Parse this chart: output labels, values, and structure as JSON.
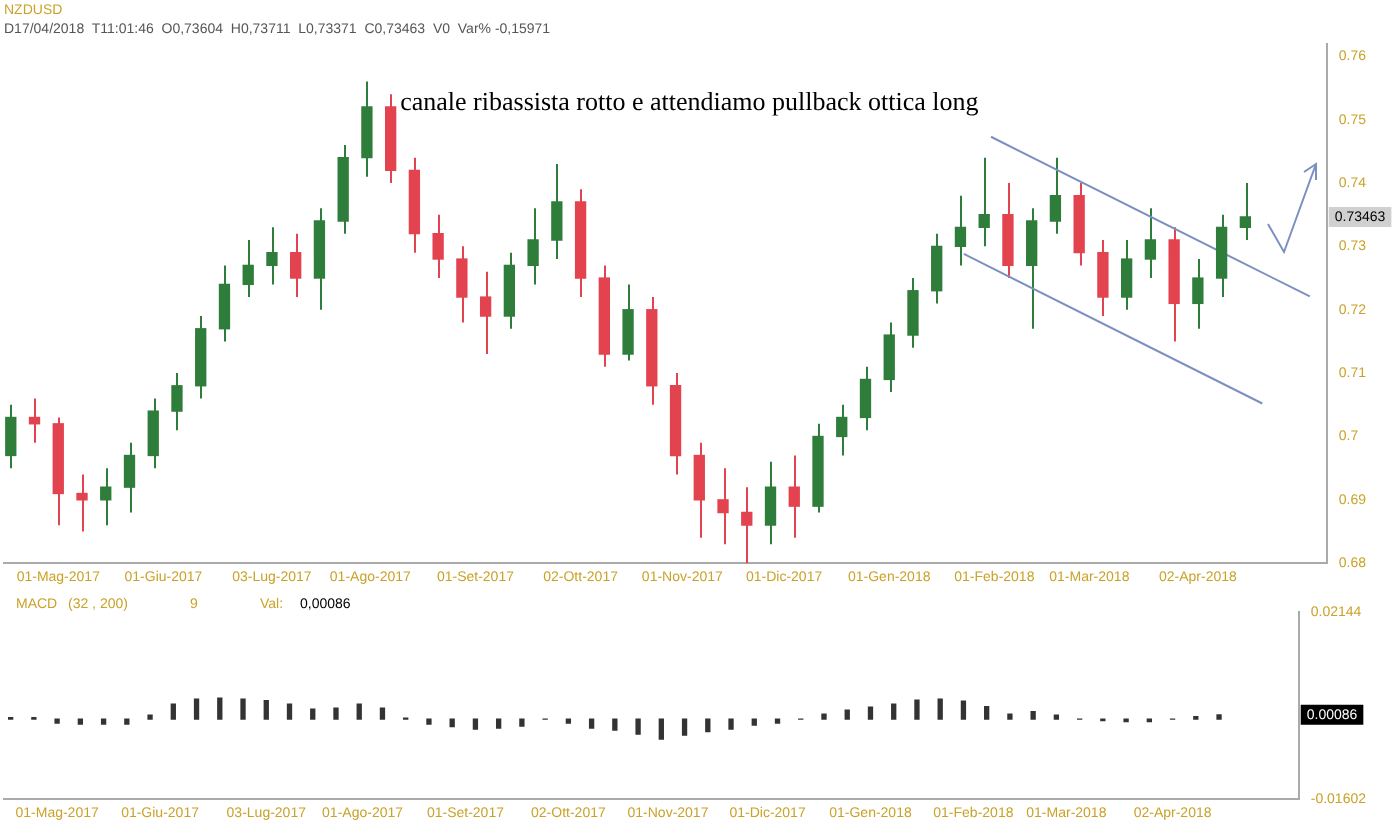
{
  "chart_data": [
    {
      "type": "candlestick",
      "title": "NZDUSD",
      "subtitle": "D17/04/2018  T11:01:46  O0,73604  H0,73711  L0,73371  C0,73463  V0  Var% -0,15971",
      "annotations": [
        "canale ribassista rotto e attendiamo pullback ottica long",
        "0.73463"
      ],
      "x": [
        "2017-04-17",
        "2017-04-24",
        "2017-05-01",
        "2017-05-08",
        "2017-05-15",
        "2017-05-22",
        "2017-05-29",
        "2017-06-05",
        "2017-06-12",
        "2017-06-19",
        "2017-06-26",
        "2017-07-03",
        "2017-07-10",
        "2017-07-17",
        "2017-07-24",
        "2017-07-31",
        "2017-08-07",
        "2017-08-14",
        "2017-08-21",
        "2017-08-28",
        "2017-09-04",
        "2017-09-11",
        "2017-09-18",
        "2017-09-25",
        "2017-10-02",
        "2017-10-09",
        "2017-10-16",
        "2017-10-23",
        "2017-10-30",
        "2017-11-06",
        "2017-11-13",
        "2017-11-20",
        "2017-11-27",
        "2017-12-04",
        "2017-12-11",
        "2017-12-18",
        "2017-12-25",
        "2018-01-01",
        "2018-01-08",
        "2018-01-15",
        "2018-01-22",
        "2018-01-29",
        "2018-02-05",
        "2018-02-12",
        "2018-02-19",
        "2018-02-26",
        "2018-03-05",
        "2018-03-12",
        "2018-03-19",
        "2018-03-26",
        "2018-04-02",
        "2018-04-09",
        "2018-04-16"
      ],
      "ohlc": [
        [
          0.697,
          0.705,
          0.695,
          0.703
        ],
        [
          0.703,
          0.706,
          0.699,
          0.702
        ],
        [
          0.702,
          0.703,
          0.686,
          0.691
        ],
        [
          0.691,
          0.694,
          0.685,
          0.69
        ],
        [
          0.69,
          0.695,
          0.686,
          0.692
        ],
        [
          0.692,
          0.699,
          0.688,
          0.697
        ],
        [
          0.697,
          0.706,
          0.695,
          0.704
        ],
        [
          0.704,
          0.71,
          0.701,
          0.708
        ],
        [
          0.708,
          0.719,
          0.706,
          0.717
        ],
        [
          0.717,
          0.727,
          0.715,
          0.724
        ],
        [
          0.724,
          0.731,
          0.722,
          0.727
        ],
        [
          0.727,
          0.733,
          0.724,
          0.729
        ],
        [
          0.729,
          0.732,
          0.722,
          0.725
        ],
        [
          0.725,
          0.736,
          0.72,
          0.734
        ],
        [
          0.734,
          0.746,
          0.732,
          0.744
        ],
        [
          0.744,
          0.756,
          0.741,
          0.752
        ],
        [
          0.752,
          0.754,
          0.74,
          0.742
        ],
        [
          0.742,
          0.744,
          0.729,
          0.732
        ],
        [
          0.732,
          0.735,
          0.725,
          0.728
        ],
        [
          0.728,
          0.73,
          0.718,
          0.722
        ],
        [
          0.722,
          0.726,
          0.713,
          0.719
        ],
        [
          0.719,
          0.729,
          0.717,
          0.727
        ],
        [
          0.727,
          0.736,
          0.724,
          0.731
        ],
        [
          0.731,
          0.743,
          0.728,
          0.737
        ],
        [
          0.737,
          0.739,
          0.722,
          0.725
        ],
        [
          0.725,
          0.727,
          0.711,
          0.713
        ],
        [
          0.713,
          0.724,
          0.712,
          0.72
        ],
        [
          0.72,
          0.722,
          0.705,
          0.708
        ],
        [
          0.708,
          0.71,
          0.694,
          0.697
        ],
        [
          0.697,
          0.699,
          0.684,
          0.69
        ],
        [
          0.69,
          0.695,
          0.683,
          0.688
        ],
        [
          0.688,
          0.692,
          0.68,
          0.686
        ],
        [
          0.686,
          0.696,
          0.683,
          0.692
        ],
        [
          0.692,
          0.697,
          0.684,
          0.689
        ],
        [
          0.689,
          0.702,
          0.688,
          0.7
        ],
        [
          0.7,
          0.705,
          0.697,
          0.703
        ],
        [
          0.703,
          0.711,
          0.701,
          0.709
        ],
        [
          0.709,
          0.718,
          0.707,
          0.716
        ],
        [
          0.716,
          0.725,
          0.714,
          0.723
        ],
        [
          0.723,
          0.732,
          0.721,
          0.73
        ],
        [
          0.73,
          0.738,
          0.727,
          0.733
        ],
        [
          0.733,
          0.744,
          0.73,
          0.735
        ],
        [
          0.735,
          0.74,
          0.725,
          0.727
        ],
        [
          0.727,
          0.736,
          0.717,
          0.734
        ],
        [
          0.734,
          0.744,
          0.732,
          0.738
        ],
        [
          0.738,
          0.74,
          0.727,
          0.729
        ],
        [
          0.729,
          0.731,
          0.719,
          0.722
        ],
        [
          0.722,
          0.731,
          0.72,
          0.728
        ],
        [
          0.728,
          0.736,
          0.725,
          0.731
        ],
        [
          0.731,
          0.733,
          0.715,
          0.721
        ],
        [
          0.721,
          0.728,
          0.717,
          0.725
        ],
        [
          0.725,
          0.735,
          0.722,
          0.733
        ],
        [
          0.733,
          0.74,
          0.731,
          0.73463
        ]
      ],
      "colors": [
        "#2f7d3a",
        "#e2434f",
        "#e2434f",
        "#e2434f",
        "#2f7d3a",
        "#2f7d3a",
        "#2f7d3a",
        "#2f7d3a",
        "#2f7d3a",
        "#2f7d3a",
        "#2f7d3a",
        "#2f7d3a",
        "#e2434f",
        "#2f7d3a",
        "#2f7d3a",
        "#2f7d3a",
        "#e2434f",
        "#e2434f",
        "#e2434f",
        "#e2434f",
        "#e2434f",
        "#2f7d3a",
        "#2f7d3a",
        "#2f7d3a",
        "#e2434f",
        "#e2434f",
        "#2f7d3a",
        "#e2434f",
        "#e2434f",
        "#e2434f",
        "#e2434f",
        "#e2434f",
        "#2f7d3a",
        "#e2434f",
        "#2f7d3a",
        "#2f7d3a",
        "#2f7d3a",
        "#2f7d3a",
        "#2f7d3a",
        "#2f7d3a",
        "#2f7d3a",
        "#2f7d3a",
        "#e2434f",
        "#2f7d3a",
        "#2f7d3a",
        "#e2434f",
        "#e2434f",
        "#2f7d3a",
        "#2f7d3a",
        "#e2434f",
        "#2f7d3a",
        "#2f7d3a",
        "#2f7d3a"
      ],
      "series": [
        {
          "type": "line",
          "color": "#7b8fc0",
          "x": [
            "2018-01-31",
            "2018-05-05"
          ],
          "values": [
            0.7473,
            0.7221
          ]
        },
        {
          "type": "line",
          "color": "#7b8fc0",
          "x": [
            "2018-01-23",
            "2018-04-21"
          ],
          "values": [
            0.7288,
            0.7052
          ]
        }
      ],
      "marker": "none",
      "grid": false,
      "xlim": [
        "2017-04-15",
        "2018-05-10"
      ],
      "xticks": [
        {
          "value": "2017-05-01",
          "label": "01-Mag-2017"
        },
        {
          "value": "2017-06-01",
          "label": "01-Giu-2017"
        },
        {
          "value": "2017-07-03",
          "label": "03-Lug-2017"
        },
        {
          "value": "2017-08-01",
          "label": "01-Ago-2017"
        },
        {
          "value": "2017-09-01",
          "label": "01-Set-2017"
        },
        {
          "value": "2017-10-02",
          "label": "02-Ott-2017"
        },
        {
          "value": "2017-11-01",
          "label": "01-Nov-2017"
        },
        {
          "value": "2017-12-01",
          "label": "01-Dic-2017"
        },
        {
          "value": "2018-01-01",
          "label": "01-Gen-2018"
        },
        {
          "value": "2018-02-01",
          "label": "01-Feb-2018"
        },
        {
          "value": "2018-03-01",
          "label": "01-Mar-2018"
        },
        {
          "value": "2018-04-02",
          "label": "02-Apr-2018"
        }
      ],
      "ylim": [
        0.68,
        0.762
      ],
      "yticks": [
        0.68,
        0.69,
        0.7,
        0.71,
        0.72,
        0.73,
        0.74,
        0.75,
        0.76
      ]
    },
    {
      "type": "bar",
      "title": "MACD",
      "annotations": [
        "(32 , 200)",
        "9",
        "Val:",
        "0,00086",
        "0.00086"
      ],
      "x": [
        "2017-04-17",
        "2017-04-24",
        "2017-05-01",
        "2017-05-08",
        "2017-05-15",
        "2017-05-22",
        "2017-05-29",
        "2017-06-05",
        "2017-06-12",
        "2017-06-19",
        "2017-06-26",
        "2017-07-03",
        "2017-07-10",
        "2017-07-17",
        "2017-07-24",
        "2017-07-31",
        "2017-08-07",
        "2017-08-14",
        "2017-08-21",
        "2017-08-28",
        "2017-09-04",
        "2017-09-11",
        "2017-09-18",
        "2017-09-25",
        "2017-10-02",
        "2017-10-09",
        "2017-10-16",
        "2017-10-23",
        "2017-10-30",
        "2017-11-06",
        "2017-11-13",
        "2017-11-20",
        "2017-11-27",
        "2017-12-04",
        "2017-12-11",
        "2017-12-18",
        "2017-12-25",
        "2018-01-01",
        "2018-01-08",
        "2018-01-15",
        "2018-01-22",
        "2018-01-29",
        "2018-02-05",
        "2018-02-12",
        "2018-02-19",
        "2018-02-26",
        "2018-03-05",
        "2018-03-12",
        "2018-03-19",
        "2018-03-26",
        "2018-04-02",
        "2018-04-09",
        "2018-04-16"
      ],
      "values": [
        0.0003,
        0.0003,
        -0.0008,
        -0.001,
        -0.001,
        -0.001,
        0.0008,
        0.003,
        0.004,
        0.0042,
        0.004,
        0.0037,
        0.003,
        0.002,
        0.0022,
        0.003,
        0.0022,
        0.0002,
        -0.001,
        -0.0015,
        -0.002,
        -0.0018,
        -0.0014,
        0,
        -0.0008,
        -0.0018,
        -0.0022,
        -0.003,
        -0.004,
        -0.0032,
        -0.0025,
        -0.002,
        -0.0012,
        -0.0008,
        0,
        0.001,
        0.0018,
        0.0024,
        0.003,
        0.0038,
        0.004,
        0.0036,
        0.0025,
        0.001,
        0.0015,
        0.0008,
        0,
        -0.0003,
        -0.0005,
        -0.0005,
        0,
        0.0005,
        0.00086
      ],
      "color": "#333333",
      "grid": false,
      "xlim": [
        "2017-04-15",
        "2018-05-10"
      ],
      "xticks": [
        {
          "value": "2017-05-01",
          "label": "01-Mag-2017"
        },
        {
          "value": "2017-06-01",
          "label": "01-Giu-2017"
        },
        {
          "value": "2017-07-03",
          "label": "03-Lug-2017"
        },
        {
          "value": "2017-08-01",
          "label": "01-Ago-2017"
        },
        {
          "value": "2017-09-01",
          "label": "01-Set-2017"
        },
        {
          "value": "2017-10-02",
          "label": "02-Ott-2017"
        },
        {
          "value": "2017-11-01",
          "label": "01-Nov-2017"
        },
        {
          "value": "2017-12-01",
          "label": "01-Dic-2017"
        },
        {
          "value": "2018-01-01",
          "label": "01-Gen-2018"
        },
        {
          "value": "2018-02-01",
          "label": "01-Feb-2018"
        },
        {
          "value": "2018-03-01",
          "label": "01-Mar-2018"
        },
        {
          "value": "2018-04-02",
          "label": "02-Apr-2018"
        }
      ],
      "ylim": [
        -0.01602,
        0.02144
      ],
      "yticks": [
        -0.01602,
        0.02144
      ]
    }
  ]
}
